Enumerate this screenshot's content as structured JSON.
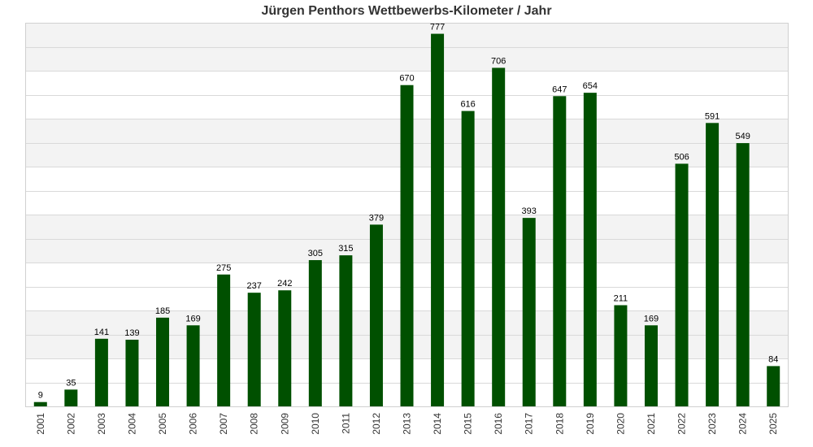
{
  "chart_data": {
    "type": "bar",
    "title": "Jürgen Penthors Wettbewerbs-Kilometer / Jahr",
    "xlabel": "",
    "ylabel": "",
    "categories": [
      "2001",
      "2002",
      "2003",
      "2004",
      "2005",
      "2006",
      "2007",
      "2008",
      "2009",
      "2010",
      "2011",
      "2012",
      "2013",
      "2014",
      "2015",
      "2016",
      "2017",
      "2018",
      "2019",
      "2020",
      "2021",
      "2022",
      "2023",
      "2024",
      "2025"
    ],
    "values": [
      9,
      35,
      141,
      139,
      185,
      169,
      275,
      237,
      242,
      305,
      315,
      379,
      670,
      777,
      616,
      706,
      393,
      647,
      654,
      211,
      169,
      506,
      591,
      549,
      84
    ],
    "value_labels": [
      "9",
      "35",
      "141",
      "139",
      "185",
      "169",
      "275",
      "237",
      "242",
      "305",
      "315",
      "379",
      "670",
      "777",
      "616",
      "706",
      "393",
      "647",
      "654",
      "211",
      "169",
      "506",
      "591",
      "549",
      "84"
    ],
    "ylim": [
      0,
      800
    ],
    "grid": true,
    "gridline_step": 50,
    "y_tick_labels_shown": false,
    "legend": "none",
    "colors": {
      "bar": "#005000",
      "band_light": "#ffffff",
      "band_shaded": "#f3f3f3",
      "gridline": "#d9d9d9",
      "frame": "#d0d0d0",
      "title": "#333333"
    }
  }
}
